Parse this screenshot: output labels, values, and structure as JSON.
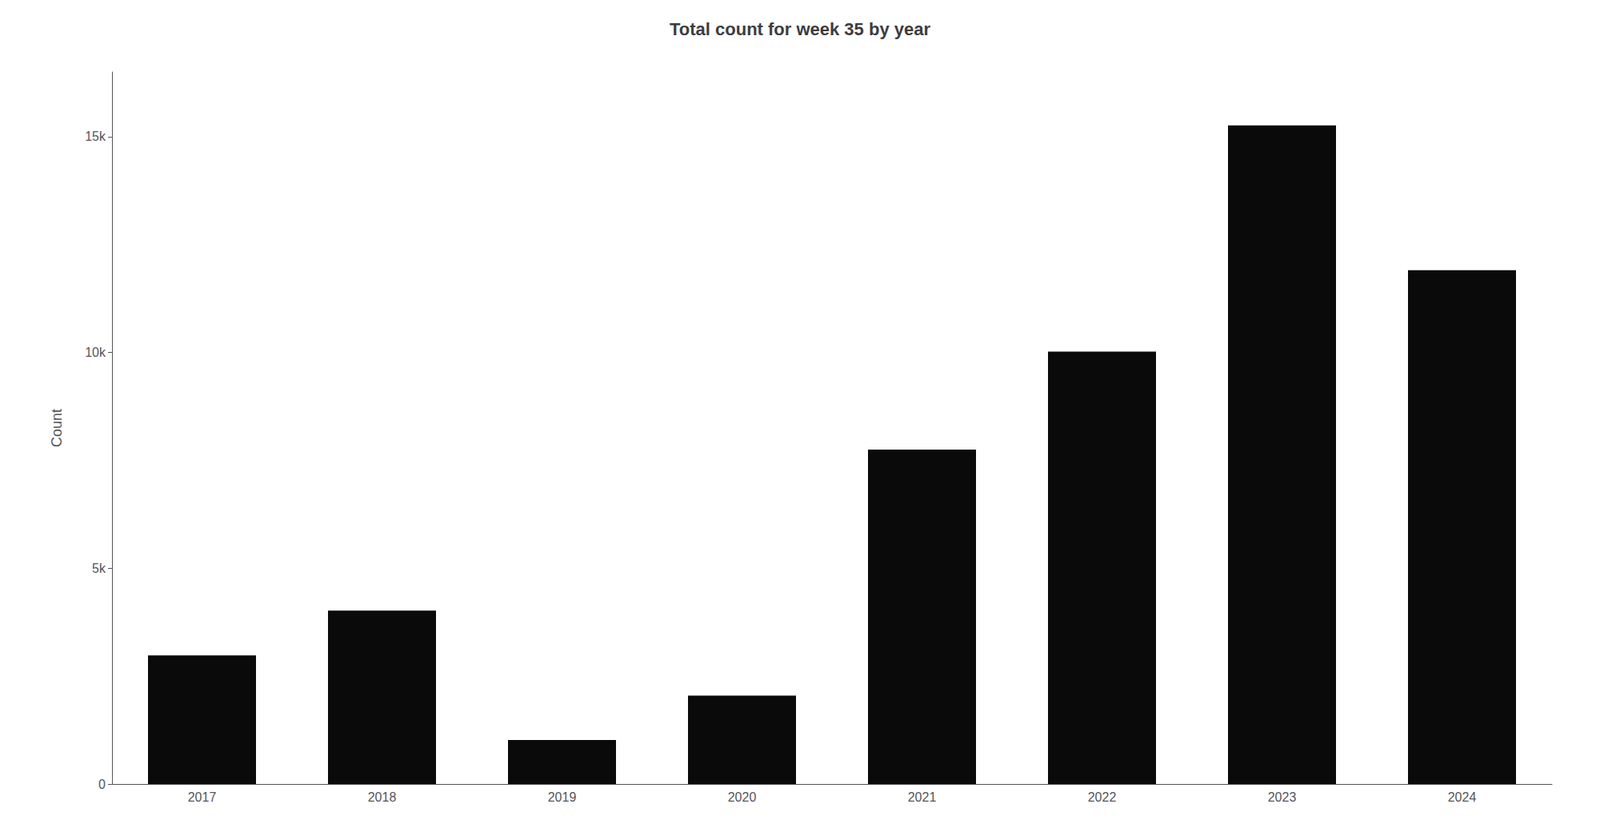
{
  "chart_data": {
    "type": "bar",
    "title": "Total count for week 35 by year",
    "categories": [
      "2017",
      "2018",
      "2019",
      "2020",
      "2021",
      "2022",
      "2023",
      "2024"
    ],
    "values": [
      2980,
      4020,
      1020,
      2050,
      7750,
      10020,
      15263,
      11905
    ],
    "color": "#0a0a0a",
    "ylabel": "Count",
    "ylim": [
      0,
      16500
    ],
    "yticks": [
      0,
      {
        "value": 5000,
        "label": "5k"
      },
      {
        "value": 10000,
        "label": "10k"
      },
      {
        "value": 15000,
        "label": "15k"
      }
    ],
    "grid": false
  }
}
